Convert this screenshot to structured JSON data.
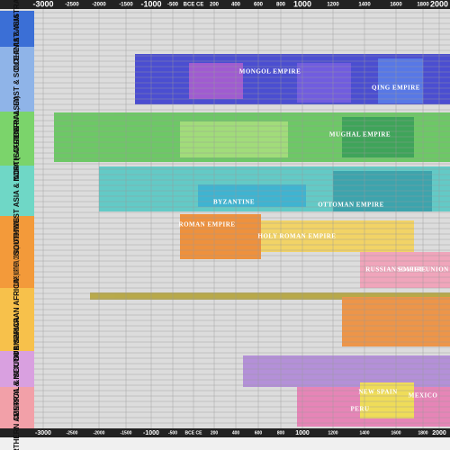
{
  "axis_labels": [
    "-3000",
    "-2500",
    "-2000",
    "-1500",
    "-1000",
    "-500",
    "BCE CE",
    "200",
    "400",
    "600",
    "800",
    "1000",
    "1200",
    "1400",
    "1600",
    "1800",
    "2000"
  ],
  "regions": [
    "OCEANIA & AUSTRALIA",
    "CENTRAL, EAST & SOUTHEAST ASIA",
    "INDIA (SOUTHERN ASIA)",
    "SOUTHWEST ASIA & NORTH AFRICA",
    "EUROPE (NORTHERN, CENTRAL) & NORTHEAST EURASIA",
    "SUB SAHARAN AFRICA",
    "CENTRAL & SOUTH AMERICA",
    "NORTHERN AMERICA & MEXICO"
  ],
  "labels": [
    "MONGOL EMPIRE",
    "QING EMPIRE",
    "MUGHAL EMPIRE",
    "OTTOMAN EMPIRE",
    "ROMAN EMPIRE",
    "BYZANTINE",
    "HOLY ROMAN EMPIRE",
    "RUSSIAN EMPIRE",
    "SOVIET UNION",
    "NEW SPAIN",
    "MEXICO",
    "PERU"
  ]
}
